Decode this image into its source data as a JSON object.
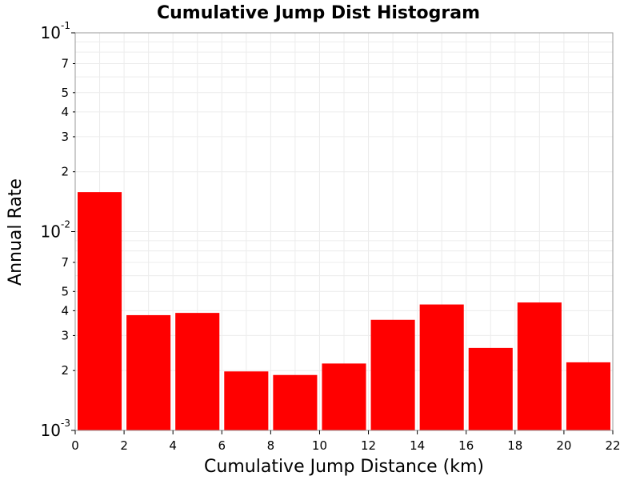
{
  "chart_data": {
    "type": "bar",
    "title": "Cumulative Jump Dist Histogram",
    "xlabel": "Cumulative Jump Distance (km)",
    "ylabel": "Annual Rate",
    "y_scale": "log",
    "xlim": [
      0,
      22
    ],
    "ylim": [
      0.001,
      0.1
    ],
    "grid": true,
    "x_ticks": [
      "0",
      "2",
      "4",
      "6",
      "8",
      "10",
      "12",
      "14",
      "16",
      "18",
      "20",
      "22"
    ],
    "y_decade_ticks": [
      {
        "base": "10",
        "exp": "-3"
      },
      {
        "base": "10",
        "exp": "-2"
      },
      {
        "base": "10",
        "exp": "-1"
      }
    ],
    "y_minor_labels": [
      "2",
      "3",
      "4",
      "5",
      "7"
    ],
    "bin_width": 2,
    "bar_color": "#ff0000",
    "x": [
      1,
      3,
      5,
      7,
      9,
      11,
      13,
      15,
      17,
      19,
      21
    ],
    "values": [
      0.0158,
      0.0038,
      0.0039,
      0.00198,
      0.0019,
      0.00217,
      0.0036,
      0.0043,
      0.0026,
      0.0044,
      0.0022
    ]
  }
}
